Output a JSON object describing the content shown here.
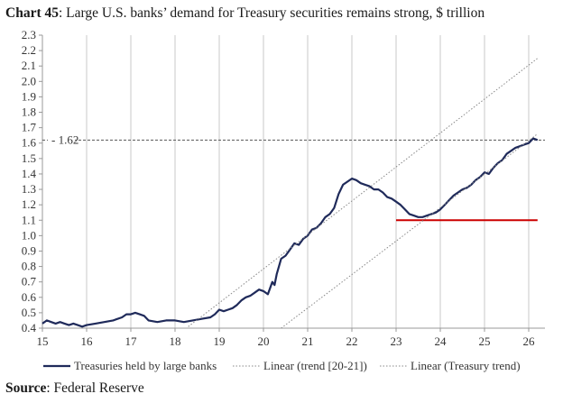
{
  "header": {
    "chart_number": "Chart 45",
    "title_text": ": Large U.S. banks’ demand for Treasury securities remains strong, $ trillion"
  },
  "footer": {
    "source_label": "Source",
    "source_text": ": Federal Reserve"
  },
  "chart_data": {
    "type": "line",
    "title": "Chart 45: Large U.S. banks’ demand for Treasury securities remains strong, $ trillion",
    "xlabel": "",
    "ylabel": "",
    "xlim": [
      15,
      26.2
    ],
    "ylim": [
      0.4,
      2.3
    ],
    "x_ticks": [
      "15",
      "16",
      "17",
      "18",
      "19",
      "20",
      "21",
      "22",
      "23",
      "24",
      "25",
      "26"
    ],
    "y_ticks": [
      "0.4",
      "0.5",
      "0.6",
      "0.7",
      "0.8",
      "0.9",
      "1.0",
      "1.1",
      "1.2",
      "1.3",
      "1.4",
      "1.5",
      "1.6",
      "1.7",
      "1.8",
      "1.9",
      "2.0",
      "2.1",
      "2.2",
      "2.3"
    ],
    "grid": "vertical",
    "legend_position": "bottom",
    "annotations": [
      {
        "type": "hline",
        "y": 1.62,
        "label": "1.62",
        "style": "dashed",
        "color": "#555555"
      },
      {
        "type": "segment",
        "x": [
          23.0,
          26.2
        ],
        "y": [
          1.1,
          1.1
        ],
        "color": "#cc0000"
      }
    ],
    "series": [
      {
        "name": "Treasuries held by large banks",
        "style": "solid",
        "color": "#1f2a5a",
        "x": [
          15.0,
          15.1,
          15.2,
          15.3,
          15.4,
          15.5,
          15.6,
          15.7,
          15.8,
          15.9,
          16.0,
          16.2,
          16.4,
          16.6,
          16.8,
          16.9,
          17.0,
          17.1,
          17.2,
          17.3,
          17.4,
          17.6,
          17.8,
          18.0,
          18.2,
          18.4,
          18.6,
          18.8,
          18.9,
          19.0,
          19.1,
          19.2,
          19.3,
          19.4,
          19.5,
          19.6,
          19.7,
          19.8,
          19.9,
          20.0,
          20.1,
          20.2,
          20.25,
          20.3,
          20.4,
          20.5,
          20.6,
          20.7,
          20.8,
          20.9,
          21.0,
          21.1,
          21.2,
          21.3,
          21.4,
          21.5,
          21.6,
          21.7,
          21.8,
          21.9,
          22.0,
          22.1,
          22.2,
          22.3,
          22.4,
          22.5,
          22.6,
          22.7,
          22.8,
          22.9,
          23.0,
          23.1,
          23.2,
          23.3,
          23.4,
          23.5,
          23.6,
          23.7,
          23.8,
          23.9,
          24.0,
          24.1,
          24.2,
          24.3,
          24.4,
          24.5,
          24.6,
          24.7,
          24.8,
          24.9,
          25.0,
          25.1,
          25.2,
          25.3,
          25.4,
          25.5,
          25.6,
          25.7,
          25.8,
          25.9,
          26.0,
          26.1,
          26.2
        ],
        "y": [
          0.43,
          0.45,
          0.44,
          0.43,
          0.44,
          0.43,
          0.42,
          0.43,
          0.42,
          0.41,
          0.42,
          0.43,
          0.44,
          0.45,
          0.47,
          0.49,
          0.49,
          0.5,
          0.49,
          0.48,
          0.45,
          0.44,
          0.45,
          0.45,
          0.44,
          0.45,
          0.46,
          0.47,
          0.49,
          0.52,
          0.51,
          0.52,
          0.53,
          0.55,
          0.58,
          0.6,
          0.61,
          0.63,
          0.65,
          0.64,
          0.62,
          0.7,
          0.68,
          0.75,
          0.85,
          0.87,
          0.91,
          0.95,
          0.94,
          0.98,
          1.0,
          1.04,
          1.05,
          1.08,
          1.12,
          1.14,
          1.18,
          1.27,
          1.33,
          1.35,
          1.37,
          1.36,
          1.34,
          1.33,
          1.32,
          1.3,
          1.3,
          1.28,
          1.25,
          1.24,
          1.22,
          1.2,
          1.17,
          1.14,
          1.13,
          1.12,
          1.12,
          1.13,
          1.14,
          1.15,
          1.17,
          1.2,
          1.23,
          1.26,
          1.28,
          1.3,
          1.31,
          1.33,
          1.36,
          1.38,
          1.41,
          1.4,
          1.44,
          1.47,
          1.49,
          1.53,
          1.55,
          1.57,
          1.58,
          1.59,
          1.6,
          1.63,
          1.62
        ]
      },
      {
        "name": "Linear (trend [20-21])",
        "style": "dotted",
        "color": "#888888",
        "x": [
          18.3,
          26.2
        ],
        "y": [
          0.41,
          2.15
        ]
      },
      {
        "name": "Linear (Treasury trend)",
        "style": "dotted",
        "color": "#888888",
        "x": [
          20.4,
          26.2
        ],
        "y": [
          0.4,
          1.66
        ]
      }
    ]
  }
}
